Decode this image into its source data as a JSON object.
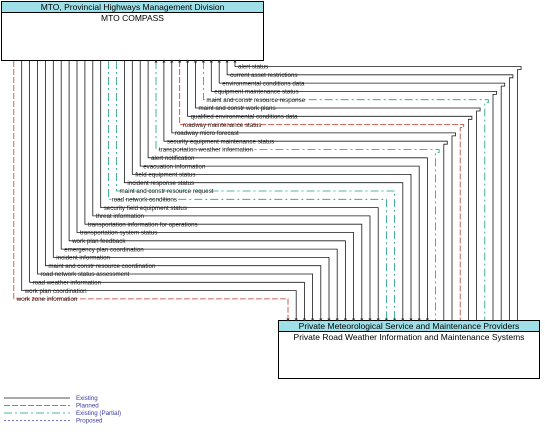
{
  "top_element": {
    "header": "MTO, Provincial Highways Management Division",
    "title": "MTO COMPASS"
  },
  "bottom_element": {
    "header": "Private Meteorological Service and Maintenance Providers",
    "title": "Private Road Weather Information and Maintenance Systems"
  },
  "colors": {
    "existing": "#1a1a1a",
    "planned": "#c0392b",
    "existing_partial": "#16a085",
    "proposed": "#3949ab",
    "header_fill": "#9fe0e8"
  },
  "flows": [
    {
      "label": "alert status",
      "dir": "up",
      "status": "existing"
    },
    {
      "label": "current asset restrictions",
      "dir": "up",
      "status": "existing"
    },
    {
      "label": "environmental conditions data",
      "dir": "up",
      "status": "existing"
    },
    {
      "label": "equipment maintenance status",
      "dir": "up",
      "status": "existing"
    },
    {
      "label": "maint and constr resource response",
      "dir": "up",
      "status": "existing_partial"
    },
    {
      "label": "maint and constr work plans",
      "dir": "up",
      "status": "existing"
    },
    {
      "label": "qualified environmental conditions data",
      "dir": "up",
      "status": "existing"
    },
    {
      "label": "roadway maintenance status",
      "dir": "up",
      "status": "planned"
    },
    {
      "label": "roadway micro forecast",
      "dir": "up",
      "status": "existing"
    },
    {
      "label": "security equipment maintenance status",
      "dir": "up",
      "status": "existing"
    },
    {
      "label": "transportation weather information",
      "dir": "up",
      "status": "existing_partial"
    },
    {
      "label": "alert notification",
      "dir": "down",
      "status": "existing"
    },
    {
      "label": "evacuation information",
      "dir": "down",
      "status": "existing"
    },
    {
      "label": "field equipment status",
      "dir": "down",
      "status": "existing"
    },
    {
      "label": "incident response status",
      "dir": "down",
      "status": "existing"
    },
    {
      "label": "maint and constr resource request",
      "dir": "down",
      "status": "existing_partial"
    },
    {
      "label": "road network conditions",
      "dir": "down",
      "status": "existing_partial"
    },
    {
      "label": "security field equipment status",
      "dir": "down",
      "status": "existing"
    },
    {
      "label": "threat information",
      "dir": "down",
      "status": "existing"
    },
    {
      "label": "transportation information for operations",
      "dir": "down",
      "status": "existing"
    },
    {
      "label": "transportation system status",
      "dir": "down",
      "status": "existing"
    },
    {
      "label": "work plan feedback",
      "dir": "down",
      "status": "existing"
    },
    {
      "label": "emergency plan coordination",
      "dir": "down",
      "status": "existing"
    },
    {
      "label": "incident information",
      "dir": "down",
      "status": "existing"
    },
    {
      "label": "maint and constr resource coordination",
      "dir": "down",
      "status": "existing"
    },
    {
      "label": "road network status assessment",
      "dir": "down",
      "status": "existing"
    },
    {
      "label": "road weather information",
      "dir": "down",
      "status": "existing"
    },
    {
      "label": "work plan coordination",
      "dir": "down",
      "status": "existing"
    },
    {
      "label": "work zone information",
      "dir": "down",
      "status": "planned"
    }
  ],
  "legend": [
    {
      "label": "Existing",
      "status": "existing"
    },
    {
      "label": "Planned",
      "status": "planned"
    },
    {
      "label": "Existing (Partial)",
      "status": "existing_partial"
    },
    {
      "label": "Proposed",
      "status": "proposed"
    }
  ]
}
